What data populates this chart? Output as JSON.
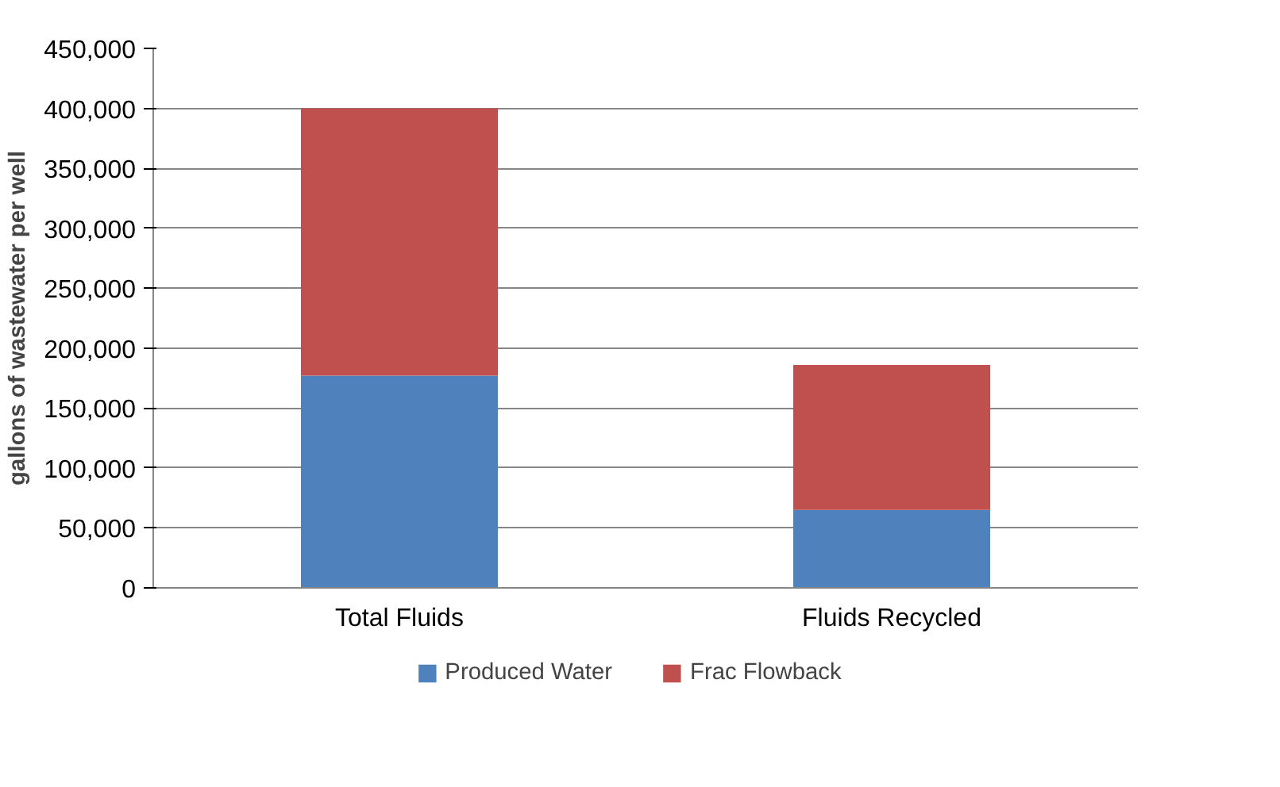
{
  "chart_data": {
    "type": "bar",
    "stacked": true,
    "ylabel": "gallons of wastewater per well",
    "categories": [
      "Total Fluids",
      "Fluids Recycled"
    ],
    "series": [
      {
        "name": "Produced Water",
        "color": "#4f81bd",
        "values": [
          177000,
          65000
        ]
      },
      {
        "name": "Frac Flowback",
        "color": "#c0504d",
        "values": [
          223000,
          121000
        ]
      }
    ],
    "ylim": [
      0,
      450000
    ],
    "yticks": [
      {
        "value": 0,
        "label": "0"
      },
      {
        "value": 50000,
        "label": "50,000"
      },
      {
        "value": 100000,
        "label": "100,000"
      },
      {
        "value": 150000,
        "label": "150,000"
      },
      {
        "value": 200000,
        "label": "200,000"
      },
      {
        "value": 250000,
        "label": "250,000"
      },
      {
        "value": 300000,
        "label": "300,000"
      },
      {
        "value": 350000,
        "label": "350,000"
      },
      {
        "value": 400000,
        "label": "400,000"
      },
      {
        "value": 450000,
        "label": "450,000"
      }
    ],
    "grid": "y",
    "legend": "bottom"
  }
}
